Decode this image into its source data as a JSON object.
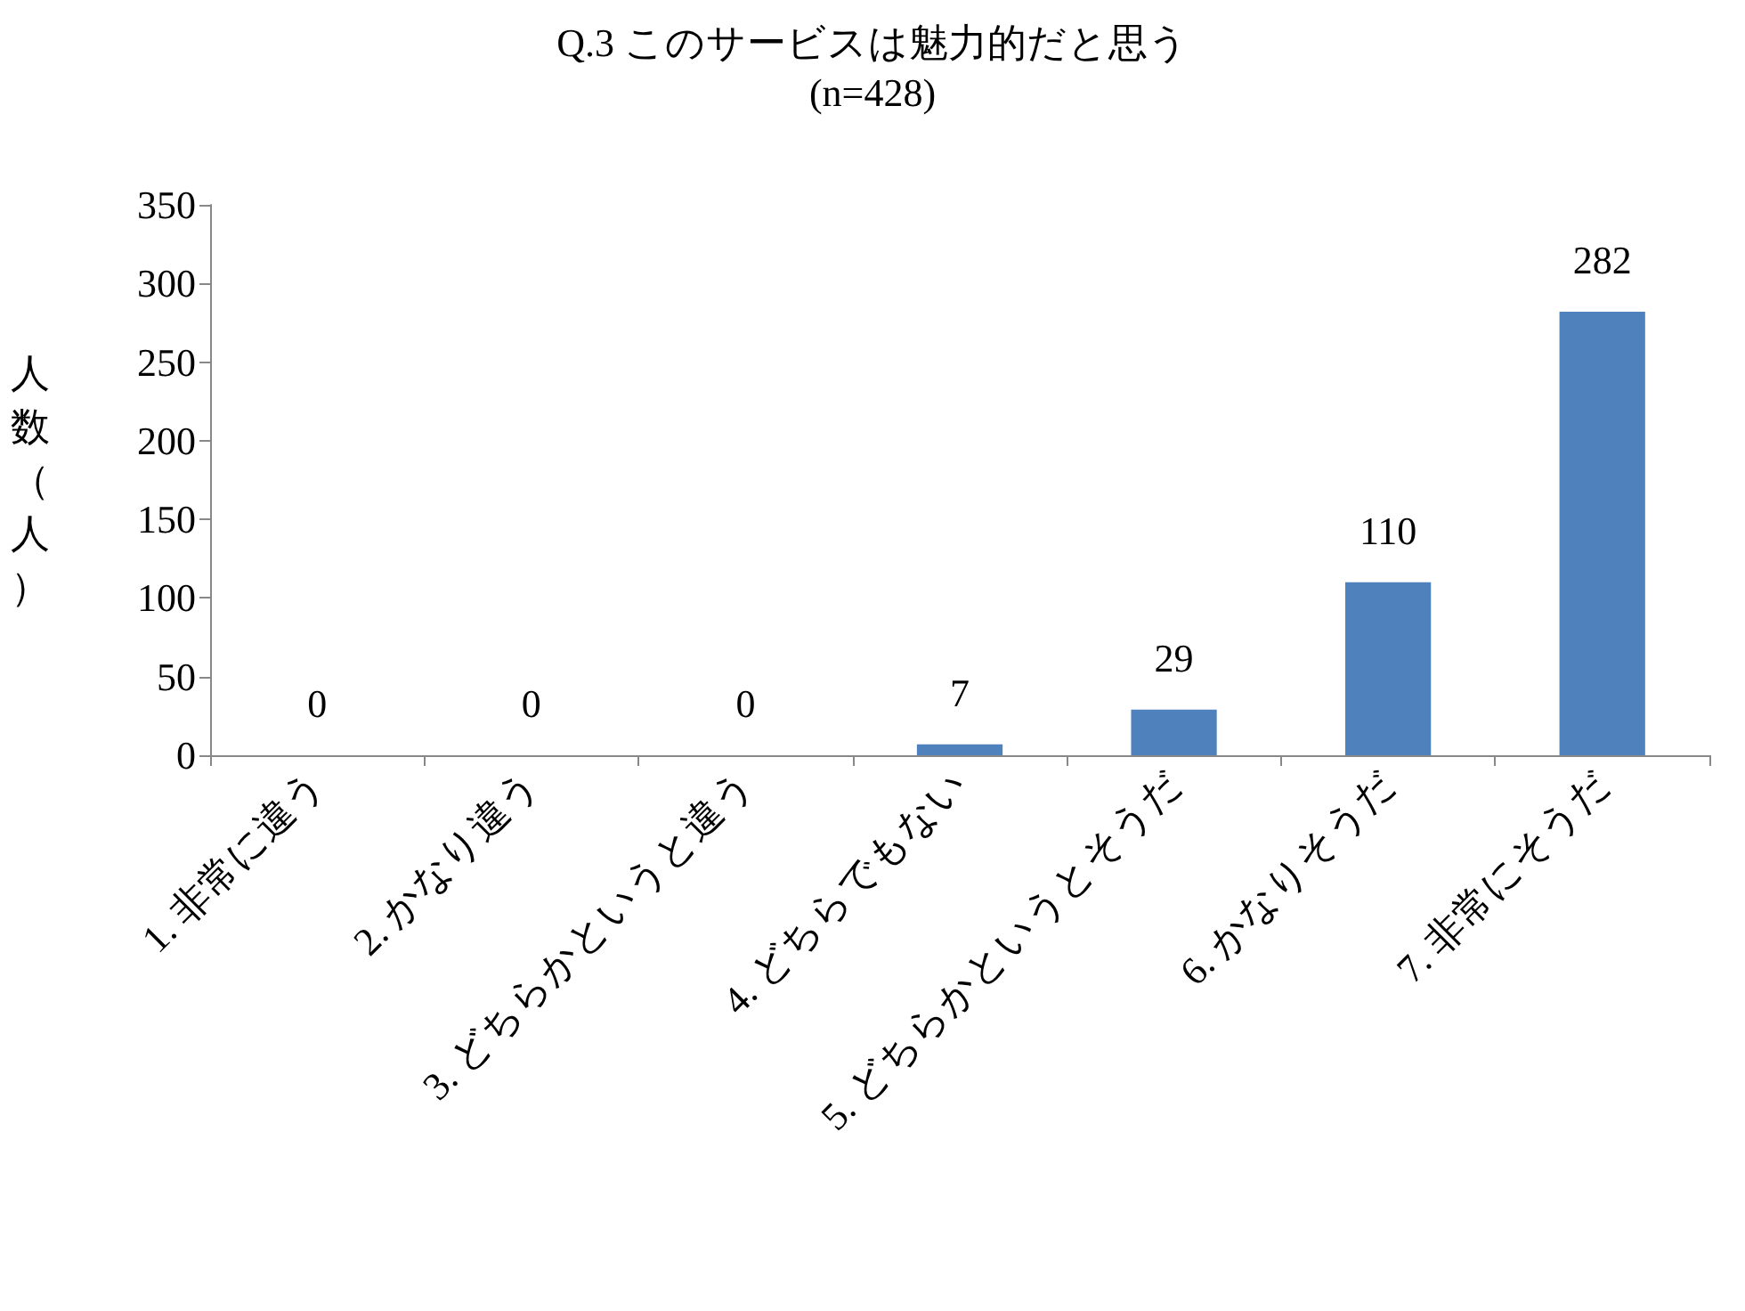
{
  "chart_data": {
    "type": "bar",
    "title": "Q.3 このサービスは魅力的だと思う",
    "subtitle": "(n=428)",
    "ylabel": "人数（人）",
    "categories": [
      "1. 非常に違う",
      "2. かなり違う",
      "3. どちらかというと違う",
      "4. どちらでもない",
      "5. どちらかというとそうだ",
      "6. かなりそうだ",
      "7. 非常にそうだ"
    ],
    "values": [
      0,
      0,
      0,
      7,
      29,
      110,
      282
    ],
    "color": "#4f81bd",
    "ylim": [
      0,
      350
    ],
    "yticks": [
      0,
      50,
      100,
      150,
      200,
      250,
      300,
      350
    ],
    "grid": false,
    "data_labels": true
  }
}
